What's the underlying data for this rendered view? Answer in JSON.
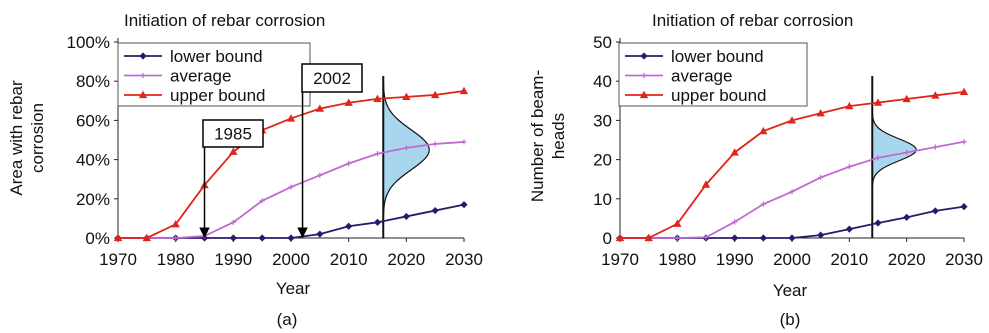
{
  "chart_data": [
    {
      "type": "line",
      "panel_label": "(a)",
      "title": "Initiation of rebar corrosion",
      "xlabel": "Year",
      "ylabel": "Area with rebar corrosion",
      "xlim": [
        1970,
        2030
      ],
      "ylim": [
        0,
        100
      ],
      "x_ticks": [
        "1970",
        "1980",
        "1990",
        "2000",
        "2010",
        "2020",
        "2030"
      ],
      "y_ticks": [
        "0%",
        "20%",
        "40%",
        "60%",
        "80%",
        "100%"
      ],
      "grid": false,
      "legend_position": "top-left",
      "series": [
        {
          "name": "lower bound",
          "color": "#2b1a6b",
          "marker": "diamond",
          "x": [
            1970,
            1975,
            1980,
            1985,
            1990,
            1995,
            2000,
            2005,
            2010,
            2015,
            2020,
            2025,
            2030
          ],
          "y": [
            0,
            0,
            0,
            0,
            0,
            0,
            0,
            2,
            6,
            8,
            11,
            14,
            17
          ]
        },
        {
          "name": "average",
          "color": "#c06ad0",
          "marker": "plus",
          "x": [
            1970,
            1975,
            1980,
            1985,
            1990,
            1995,
            2000,
            2005,
            2010,
            2015,
            2020,
            2025,
            2030
          ],
          "y": [
            0,
            0,
            0,
            1,
            8,
            19,
            26,
            32,
            38,
            43,
            46,
            48,
            49
          ]
        },
        {
          "name": "upper bound",
          "color": "#e0251b",
          "marker": "triangle",
          "x": [
            1970,
            1975,
            1980,
            1985,
            1990,
            1995,
            2000,
            2005,
            2010,
            2015,
            2020,
            2025,
            2030
          ],
          "y": [
            0,
            0,
            7,
            27,
            44,
            55,
            61,
            66,
            69,
            71,
            72,
            73,
            75
          ]
        }
      ],
      "annotations": [
        {
          "text": "1985",
          "x": 1985
        },
        {
          "text": "2002",
          "x": 2002
        }
      ]
    },
    {
      "type": "line",
      "panel_label": "(b)",
      "title": "Initiation of rebar corrosion",
      "xlabel": "Year",
      "ylabel": "Number of beam-heads",
      "xlim": [
        1970,
        2030
      ],
      "ylim": [
        0,
        55
      ],
      "x_ticks": [
        "1970",
        "1980",
        "1990",
        "2000",
        "2010",
        "2020",
        "2030"
      ],
      "y_ticks": [
        "0",
        "10",
        "20",
        "30",
        "40",
        "50"
      ],
      "grid": false,
      "legend_position": "top-left",
      "series": [
        {
          "name": "lower bound",
          "color": "#2b1a6b",
          "marker": "diamond",
          "x": [
            1970,
            1975,
            1980,
            1985,
            1990,
            1995,
            2000,
            2005,
            2010,
            2015,
            2020,
            2025,
            2030
          ],
          "y": [
            0,
            0,
            0,
            0,
            0,
            0,
            0,
            0.8,
            2.5,
            4.2,
            5.8,
            7.6,
            8.8
          ]
        },
        {
          "name": "average",
          "color": "#c06ad0",
          "marker": "plus",
          "x": [
            1970,
            1975,
            1980,
            1985,
            1990,
            1995,
            2000,
            2005,
            2010,
            2015,
            2020,
            2025,
            2030
          ],
          "y": [
            0,
            0,
            0,
            0.2,
            4.5,
            9.5,
            13,
            17,
            20,
            22.5,
            24,
            25.5,
            27
          ]
        },
        {
          "name": "upper bound",
          "color": "#e0251b",
          "marker": "triangle",
          "x": [
            1970,
            1975,
            1980,
            1985,
            1990,
            1995,
            2000,
            2005,
            2010,
            2015,
            2020,
            2025,
            2030
          ],
          "y": [
            0,
            0,
            4,
            15,
            24,
            30,
            33,
            35,
            37,
            38,
            39,
            40,
            41
          ]
        }
      ]
    }
  ]
}
